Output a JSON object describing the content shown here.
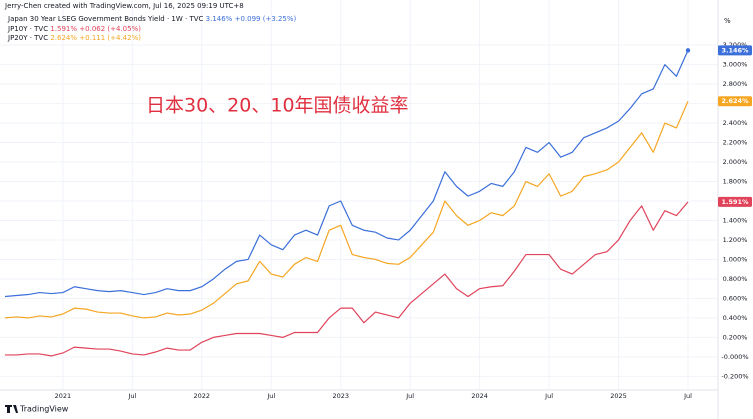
{
  "header": {
    "credit": "Jerry-Chen created with TradingView.com, Jul 16, 2025 09:19 UTC+8",
    "footer": "TradingView"
  },
  "chart_data": {
    "type": "line",
    "annotation": "日本30、20、10年国债收益率",
    "unit_label": "%",
    "categories": [
      null,
      null,
      null,
      null,
      null,
      "2021",
      null,
      null,
      null,
      null,
      null,
      "Jul",
      null,
      null,
      null,
      null,
      null,
      "2022",
      null,
      null,
      null,
      null,
      null,
      "Jul",
      null,
      null,
      null,
      null,
      null,
      "2023",
      null,
      null,
      null,
      null,
      null,
      "Jul",
      null,
      null,
      null,
      null,
      null,
      "2024",
      null,
      null,
      null,
      null,
      null,
      "Jul",
      null,
      null,
      null,
      null,
      null,
      "2025",
      null,
      null,
      null,
      null,
      null,
      "Jul"
    ],
    "series": [
      {
        "name": "Japan 30 Year LSEG Government Bonds Yield · 1W · TVC",
        "last_label": "3.146%",
        "change": "+0.099 (+3.25%)",
        "color": "#3b6fd9",
        "values": [
          0.62,
          0.63,
          0.64,
          0.66,
          0.65,
          0.66,
          0.72,
          0.7,
          0.68,
          0.67,
          0.68,
          0.66,
          0.64,
          0.66,
          0.7,
          0.68,
          0.68,
          0.72,
          0.8,
          0.9,
          0.98,
          1.0,
          1.25,
          1.15,
          1.1,
          1.25,
          1.3,
          1.25,
          1.55,
          1.6,
          1.35,
          1.3,
          1.28,
          1.22,
          1.2,
          1.3,
          1.45,
          1.6,
          1.9,
          1.75,
          1.65,
          1.7,
          1.78,
          1.75,
          1.9,
          2.15,
          2.1,
          2.2,
          2.05,
          2.1,
          2.25,
          2.3,
          2.35,
          2.42,
          2.55,
          2.7,
          2.75,
          3.0,
          2.88,
          3.146
        ]
      },
      {
        "name": "JP10Y · TVC",
        "last_label": "1.591%",
        "change": "+0.062 (+4.05%)",
        "color": "#e0435a",
        "values": [
          0.02,
          0.02,
          0.03,
          0.03,
          0.01,
          0.04,
          0.1,
          0.09,
          0.08,
          0.08,
          0.06,
          0.03,
          0.02,
          0.05,
          0.09,
          0.07,
          0.07,
          0.15,
          0.2,
          0.22,
          0.24,
          0.24,
          0.24,
          0.22,
          0.2,
          0.25,
          0.25,
          0.25,
          0.4,
          0.5,
          0.5,
          0.35,
          0.46,
          0.43,
          0.4,
          0.55,
          0.65,
          0.75,
          0.85,
          0.7,
          0.62,
          0.7,
          0.72,
          0.73,
          0.88,
          1.05,
          1.05,
          1.05,
          0.9,
          0.85,
          0.95,
          1.05,
          1.08,
          1.2,
          1.4,
          1.55,
          1.3,
          1.5,
          1.45,
          1.591
        ]
      },
      {
        "name": "JP20Y · TVC",
        "last_label": "2.624%",
        "change": "+0.111 (+4.42%)",
        "color": "#f5a623",
        "values": [
          0.4,
          0.41,
          0.4,
          0.42,
          0.41,
          0.44,
          0.5,
          0.49,
          0.46,
          0.45,
          0.45,
          0.42,
          0.4,
          0.41,
          0.45,
          0.43,
          0.44,
          0.48,
          0.55,
          0.65,
          0.75,
          0.78,
          0.98,
          0.85,
          0.82,
          0.95,
          1.02,
          0.98,
          1.3,
          1.35,
          1.05,
          1.02,
          1.0,
          0.96,
          0.95,
          1.02,
          1.15,
          1.28,
          1.6,
          1.45,
          1.35,
          1.4,
          1.48,
          1.45,
          1.55,
          1.8,
          1.75,
          1.88,
          1.65,
          1.7,
          1.85,
          1.88,
          1.92,
          2.0,
          2.15,
          2.3,
          2.1,
          2.4,
          2.35,
          2.624
        ]
      }
    ],
    "ylim": [
      -0.34,
      3.54
    ],
    "yticks": [
      {
        "value": -0.2,
        "label": "-0.200%"
      },
      {
        "value": 0,
        "label": "-0.000%"
      },
      {
        "value": 0.2,
        "label": "0.200%"
      },
      {
        "value": 0.4,
        "label": "0.400%"
      },
      {
        "value": 0.6,
        "label": "0.600%"
      },
      {
        "value": 0.8,
        "label": "0.800%"
      },
      {
        "value": 1.0,
        "label": "1.000%"
      },
      {
        "value": 1.2,
        "label": "1.200%"
      },
      {
        "value": 1.4,
        "label": "1.400%"
      },
      {
        "value": 1.6,
        "label": "1.600%"
      },
      {
        "value": 1.8,
        "label": "1.800%"
      },
      {
        "value": 2.0,
        "label": "2.000%"
      },
      {
        "value": 2.2,
        "label": "2.200%"
      },
      {
        "value": 2.4,
        "label": "2.400%"
      },
      {
        "value": 2.6,
        "label": "2.600%"
      },
      {
        "value": 2.8,
        "label": "2.800%"
      },
      {
        "value": 3.0,
        "label": "3.000%"
      },
      {
        "value": 3.2,
        "label": "3.200%"
      }
    ],
    "grid": true
  }
}
